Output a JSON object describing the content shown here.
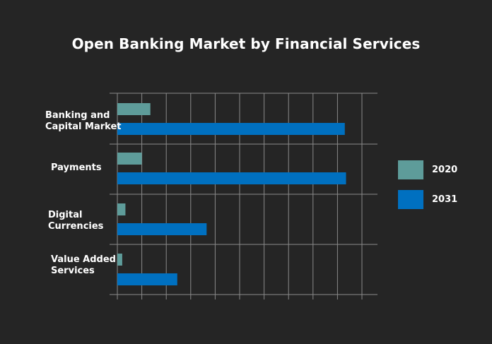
{
  "chart_data": {
    "type": "bar",
    "orientation": "horizontal",
    "title": "Open Banking Market by Financial Services",
    "categories": [
      "Banking and\nCapital Market",
      "Payments",
      "Digital\nCurrencies",
      "Value Added\nServices"
    ],
    "series": [
      {
        "name": "2020",
        "color": "#5e9c9a",
        "values": [
          1.35,
          1.0,
          0.33,
          0.2
        ]
      },
      {
        "name": "2031",
        "color": "#0070c0",
        "values": [
          9.3,
          9.35,
          3.65,
          2.45
        ]
      }
    ],
    "xlim": [
      0,
      10.5
    ],
    "grid": true,
    "legend_position": "right",
    "xlabel": "",
    "ylabel": ""
  }
}
